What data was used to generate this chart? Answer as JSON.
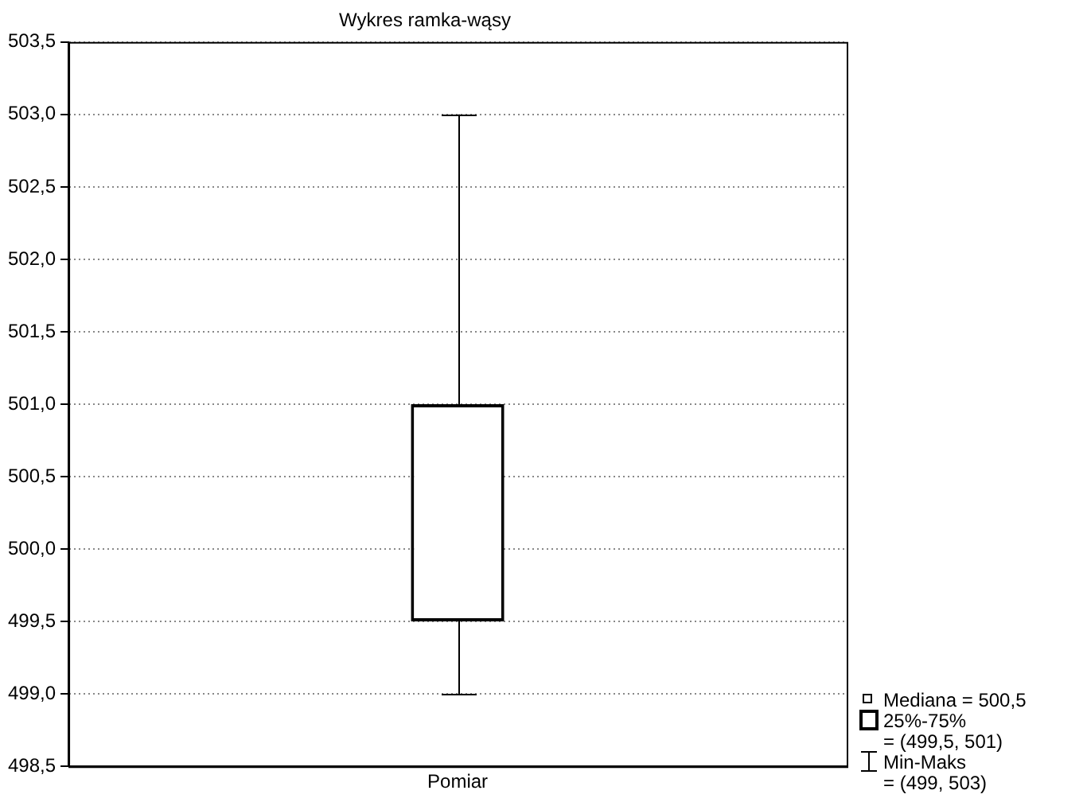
{
  "chart_data": {
    "type": "box",
    "title": "Wykres ramka-wąsy",
    "categories": [
      "Pomiar"
    ],
    "boxes": [
      {
        "low": 499,
        "q1": 499.5,
        "median": 500.5,
        "q3": 501,
        "high": 503
      }
    ],
    "ylim": [
      498.5,
      503.5
    ],
    "yticks": [
      {
        "value": 498.5,
        "label": "498,5"
      },
      {
        "value": 499,
        "label": "499,0"
      },
      {
        "value": 499.5,
        "label": "499,5"
      },
      {
        "value": 500,
        "label": "500,0"
      },
      {
        "value": 500.5,
        "label": "500,5"
      },
      {
        "value": 501,
        "label": "501,0"
      },
      {
        "value": 501.5,
        "label": "501,5"
      },
      {
        "value": 502,
        "label": "502,0"
      },
      {
        "value": 502.5,
        "label": "502,5"
      },
      {
        "value": 503,
        "label": "503,0"
      },
      {
        "value": 503.5,
        "label": "503,5"
      }
    ],
    "grid": "y",
    "annotations": [
      "Mediana = 500,5",
      "25%-75%",
      "= (499,5, 501)",
      "Min-Maks",
      "= (499, 503)"
    ]
  }
}
